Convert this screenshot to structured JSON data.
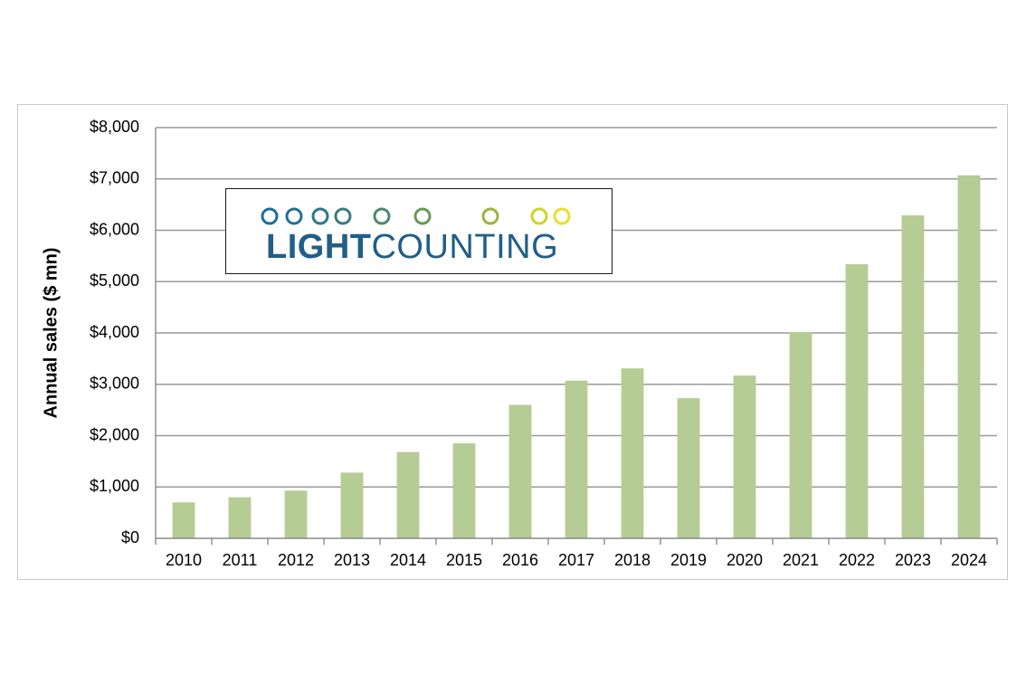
{
  "chart_data": {
    "type": "bar",
    "title": "",
    "xlabel": "",
    "ylabel": "Annual sales ($ mn)",
    "categories": [
      "2010",
      "2011",
      "2012",
      "2013",
      "2014",
      "2015",
      "2016",
      "2017",
      "2018",
      "2019",
      "2020",
      "2021",
      "2022",
      "2023",
      "2024"
    ],
    "values": [
      700,
      800,
      930,
      1280,
      1680,
      1850,
      2600,
      3070,
      3310,
      2730,
      3170,
      4020,
      5340,
      6290,
      7070
    ],
    "ylim": [
      0,
      8000
    ],
    "yticks": [
      "$0",
      "$1,000",
      "$2,000",
      "$3,000",
      "$4,000",
      "$5,000",
      "$6,000",
      "$7,000",
      "$8,000"
    ],
    "grid": true,
    "legend": "none",
    "bar_color": "#b5cc95",
    "grid_color": "#9a9a9a"
  },
  "logo": {
    "word_part1": "LIGHT",
    "word_part2": "COUNTING",
    "word_color": "#1f5f88",
    "gradient": [
      "#1b6f9a",
      "#5c9a5a",
      "#e8e02a"
    ]
  }
}
